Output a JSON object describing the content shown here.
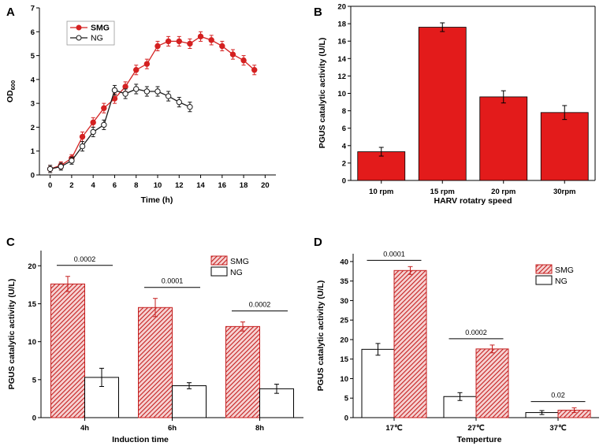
{
  "chart_data": [
    {
      "panel": "A",
      "type": "line",
      "xlabel": "Time (h)",
      "ylabel": "OD600",
      "xlim": [
        -1,
        21
      ],
      "xticks": [
        0,
        2,
        4,
        6,
        8,
        10,
        12,
        14,
        16,
        18,
        20
      ],
      "ylim": [
        0,
        7
      ],
      "yticks": [
        0,
        1,
        2,
        3,
        4,
        5,
        6,
        7
      ],
      "legend": [
        "SMG",
        "NG"
      ],
      "series": [
        {
          "name": "SMG",
          "color": "#d42121",
          "marker": "filled",
          "x": [
            0,
            1,
            2,
            3,
            4,
            5,
            6,
            7,
            8,
            9,
            10,
            11,
            12,
            13,
            14,
            15,
            16,
            17,
            18,
            19
          ],
          "y": [
            0.25,
            0.4,
            0.7,
            1.6,
            2.2,
            2.8,
            3.2,
            3.7,
            4.4,
            4.65,
            5.4,
            5.6,
            5.6,
            5.5,
            5.8,
            5.65,
            5.4,
            5.05,
            4.8,
            4.4
          ],
          "err": [
            0.15,
            0.15,
            0.15,
            0.2,
            0.2,
            0.2,
            0.2,
            0.2,
            0.2,
            0.2,
            0.2,
            0.2,
            0.2,
            0.2,
            0.2,
            0.2,
            0.2,
            0.2,
            0.2,
            0.2
          ]
        },
        {
          "name": "NG",
          "color": "#1a1a1a",
          "marker": "open",
          "x": [
            0,
            1,
            2,
            3,
            4,
            5,
            6,
            7,
            8,
            9,
            10,
            11,
            12,
            13
          ],
          "y": [
            0.25,
            0.35,
            0.6,
            1.2,
            1.8,
            2.1,
            3.55,
            3.4,
            3.6,
            3.5,
            3.5,
            3.3,
            3.05,
            2.85
          ],
          "err": [
            0.15,
            0.15,
            0.15,
            0.2,
            0.2,
            0.2,
            0.2,
            0.2,
            0.2,
            0.2,
            0.2,
            0.2,
            0.2,
            0.2
          ]
        }
      ]
    },
    {
      "panel": "B",
      "type": "bar",
      "xlabel": "HARV rotatry speed",
      "ylabel": "PGUS catalytic activity (U/L)",
      "ylim": [
        0,
        20
      ],
      "yticks": [
        0,
        2,
        4,
        6,
        8,
        10,
        12,
        14,
        16,
        18,
        20
      ],
      "categories": [
        "10 rpm",
        "15 rpm",
        "20 rpm",
        "30rpm"
      ],
      "values": [
        3.3,
        17.6,
        9.6,
        7.8
      ],
      "errors": [
        0.5,
        0.5,
        0.7,
        0.8
      ],
      "color": "#e31b1b"
    },
    {
      "panel": "C",
      "type": "bar",
      "xlabel": "Induction time",
      "ylabel": "PGUS catalytic activity (U/L)",
      "ylim": [
        0,
        22
      ],
      "yticks": [
        0,
        5,
        10,
        15,
        20
      ],
      "categories": [
        "4h",
        "6h",
        "8h"
      ],
      "legend": [
        "SMG",
        "NG"
      ],
      "series": [
        {
          "name": "SMG",
          "values": [
            17.6,
            14.5,
            12.0
          ],
          "errors": [
            1.0,
            1.2,
            0.6
          ]
        },
        {
          "name": "NG",
          "values": [
            5.3,
            4.2,
            3.8
          ],
          "errors": [
            1.2,
            0.4,
            0.6
          ]
        }
      ],
      "pvalues": [
        "0.0002",
        "0.0001",
        "0.0002"
      ]
    },
    {
      "panel": "D",
      "type": "bar",
      "xlabel": "Temperture",
      "ylabel": "PGUS catalytic activity (U/L)",
      "ylim": [
        0,
        42
      ],
      "yticks": [
        0,
        5,
        10,
        15,
        20,
        25,
        30,
        35,
        40
      ],
      "categories": [
        "17℃",
        "27℃",
        "37℃"
      ],
      "legend": [
        "SMG",
        "NG"
      ],
      "series": [
        {
          "name": "NG",
          "values": [
            17.5,
            5.4,
            1.3
          ],
          "errors": [
            1.5,
            1.0,
            0.5
          ]
        },
        {
          "name": "SMG",
          "values": [
            37.7,
            17.6,
            1.9
          ],
          "errors": [
            1.0,
            1.0,
            0.6
          ]
        }
      ],
      "pvalues": [
        "0.0001",
        "0.0002",
        "0.02"
      ]
    }
  ]
}
